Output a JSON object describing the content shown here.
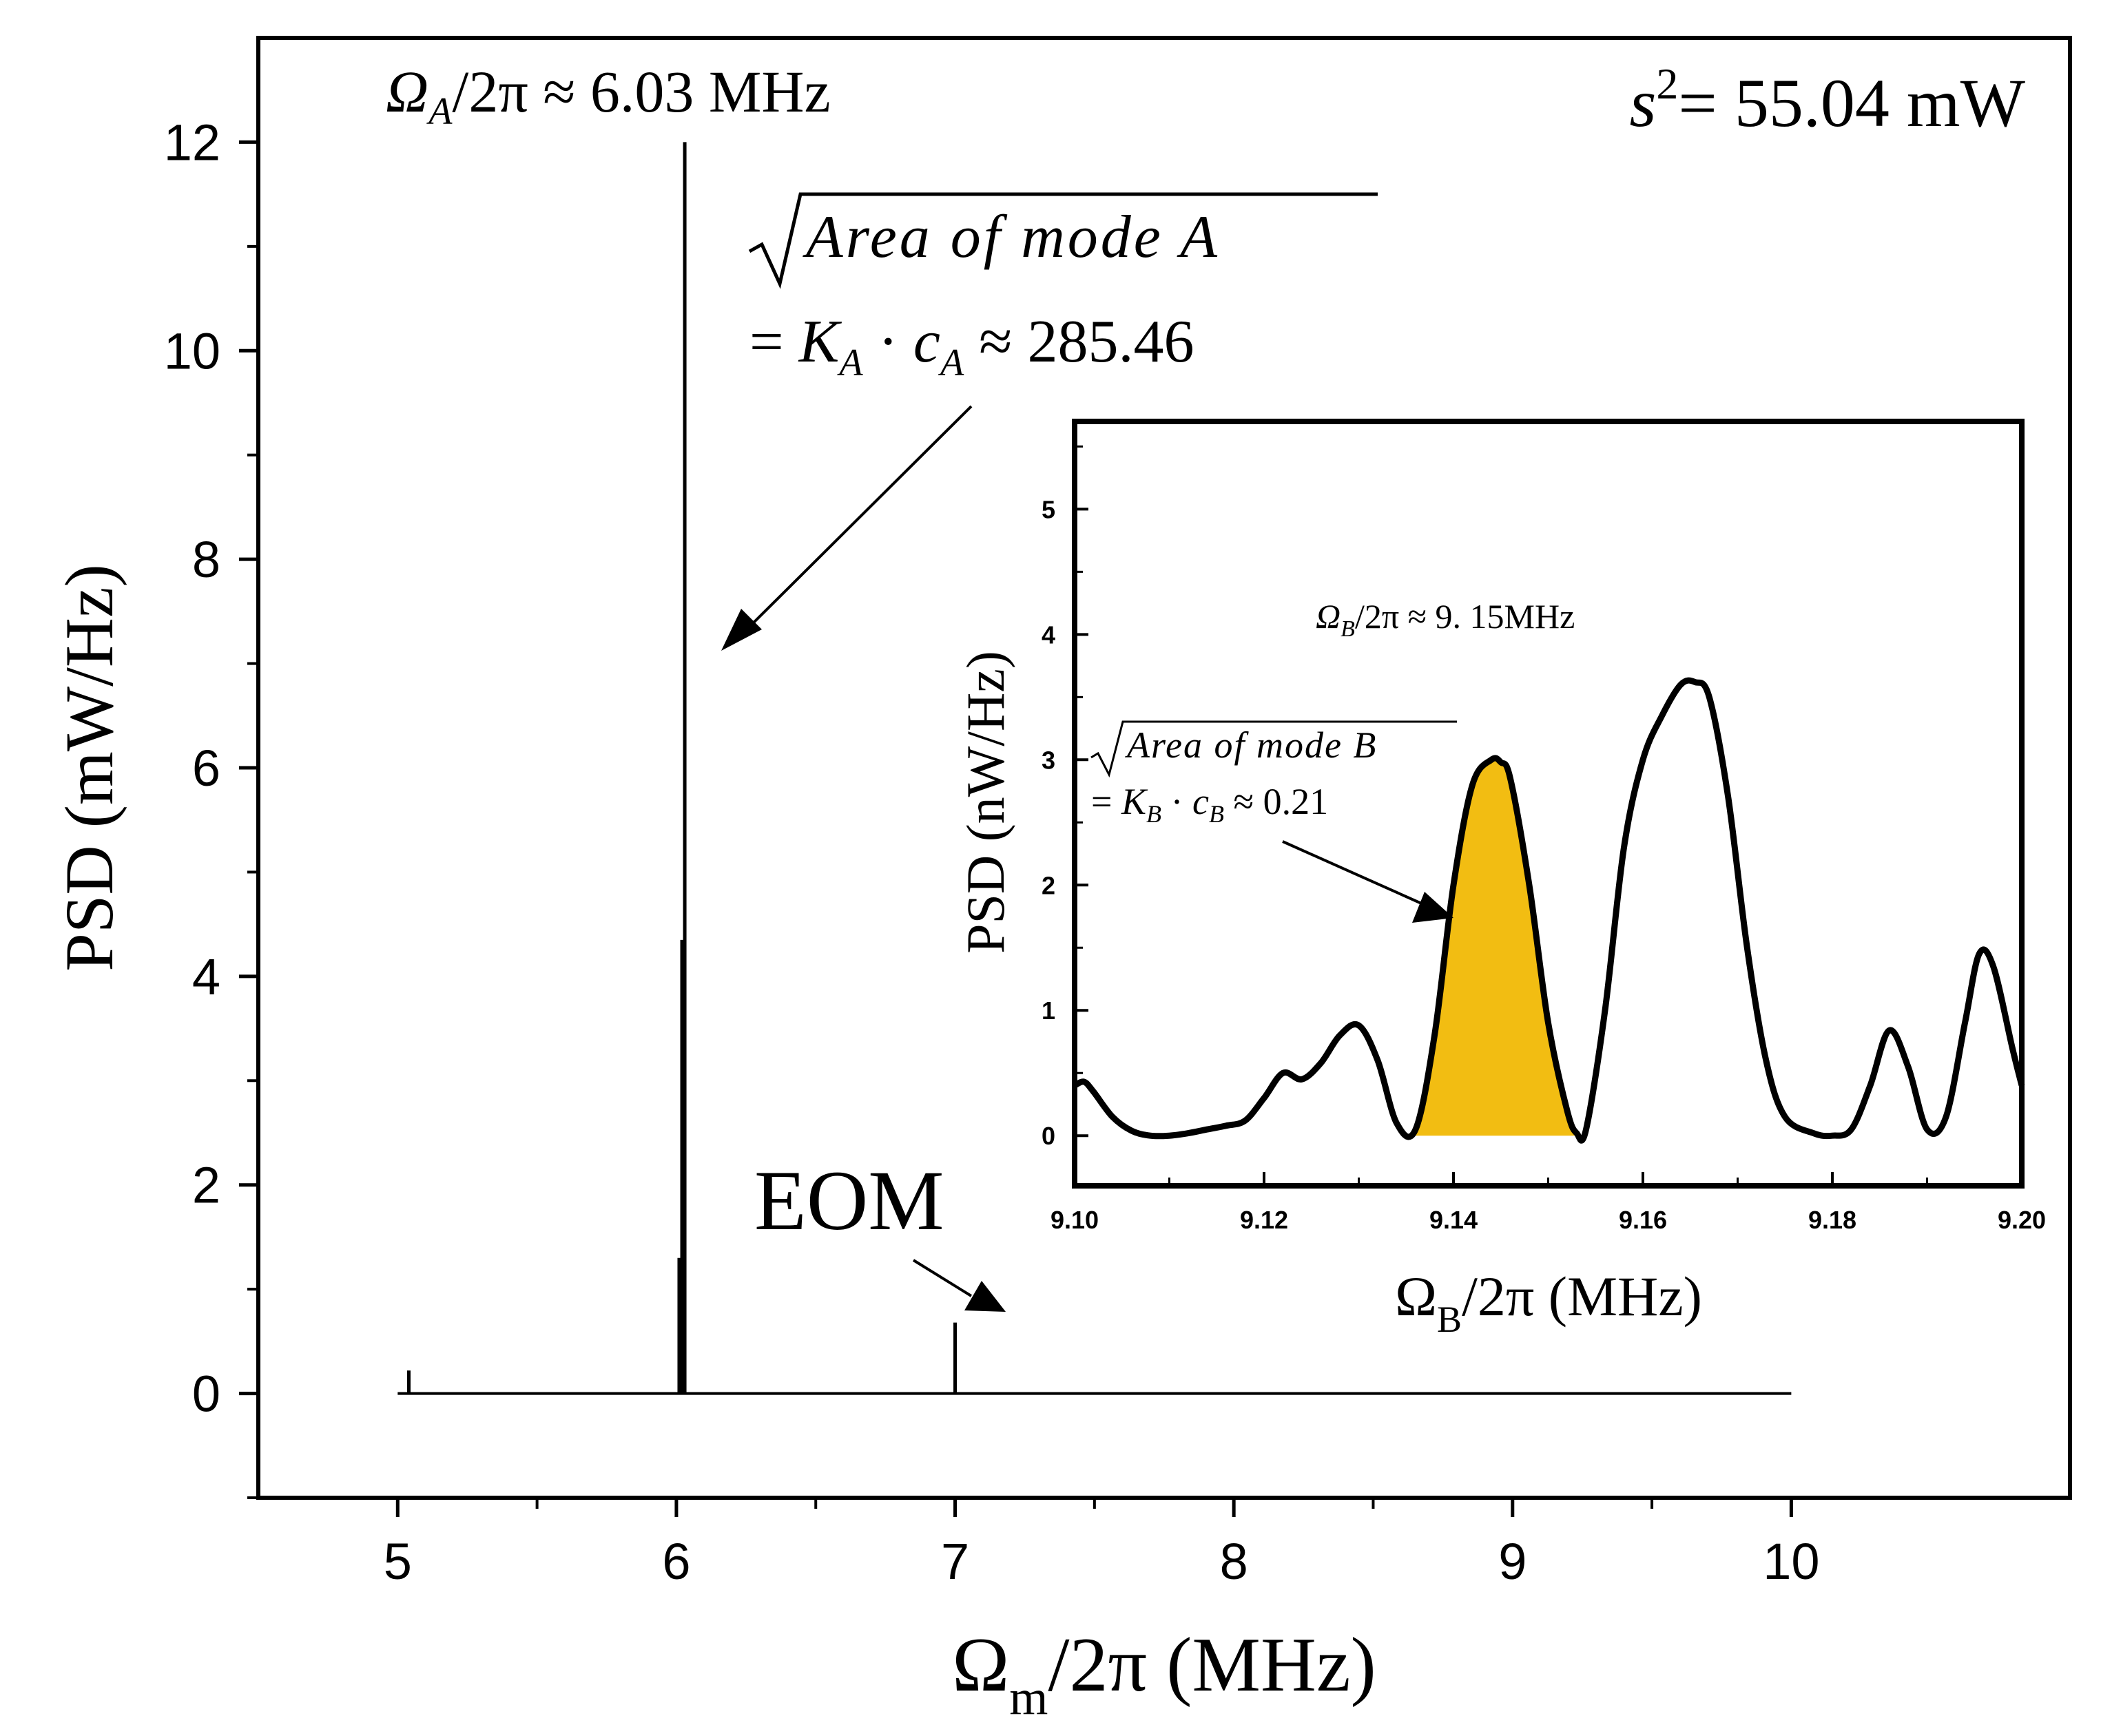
{
  "chart_data": [
    {
      "type": "line",
      "name": "main",
      "xlabel": {
        "symbol": "Ω",
        "sub": "m",
        "rest": "/2π (MHz)"
      },
      "ylabel": "PSD (mW/Hz)",
      "xlim": [
        4.5,
        11.0
      ],
      "ylim": [
        -1.0,
        13.0
      ],
      "xticks": [
        5,
        6,
        7,
        8,
        9,
        10
      ],
      "xtick_labels": [
        "5",
        "6",
        "7",
        "8",
        "9",
        "10"
      ],
      "yticks": [
        0,
        2,
        4,
        6,
        8,
        10,
        12
      ],
      "ytick_labels": [
        "0",
        "2",
        "4",
        "6",
        "8",
        "10",
        "12"
      ],
      "baseline": {
        "x": [
          5.0,
          10.0
        ],
        "y": 0
      },
      "peaks": [
        {
          "x": 5.04,
          "y": 0.22
        },
        {
          "x": 6.01,
          "y": 1.3
        },
        {
          "x": 6.02,
          "y": 4.35
        },
        {
          "x": 6.03,
          "y": 12.0
        },
        {
          "x": 7.0,
          "y": 0.68
        }
      ],
      "annotations": {
        "mode_a_freq": {
          "symbol": "Ω",
          "sub": "A",
          "rest": "/2π ≈ 6.03 MHz"
        },
        "power": {
          "symbol": "s",
          "sup": "2",
          "rest": "= 55.04 mW"
        },
        "area_a_line1": "Area of mode A",
        "area_a_line2": {
          "prefix": "= ",
          "k": "K",
          "k_sub": "A",
          "mid": " · ",
          "c": "c",
          "c_sub": "A",
          "rest": " ≈ 285.46"
        },
        "eom": "EOM"
      }
    },
    {
      "type": "line",
      "name": "inset",
      "xlabel": {
        "symbol": "Ω",
        "sub": "B",
        "rest": "/2π (MHz)"
      },
      "ylabel": "PSD (nW/Hz)",
      "xlim": [
        9.1,
        9.2
      ],
      "ylim": [
        -0.4,
        5.7
      ],
      "xticks": [
        9.1,
        9.12,
        9.14,
        9.16,
        9.18,
        9.2
      ],
      "xtick_labels": [
        "9.10",
        "9.12",
        "9.14",
        "9.16",
        "9.18",
        "9.20"
      ],
      "yticks": [
        0,
        1,
        2,
        3,
        4,
        5
      ],
      "ytick_labels": [
        "0",
        "1",
        "2",
        "3",
        "4",
        "5"
      ],
      "x": [
        9.1,
        9.101,
        9.102,
        9.104,
        9.106,
        9.108,
        9.11,
        9.112,
        9.114,
        9.116,
        9.118,
        9.12,
        9.122,
        9.124,
        9.126,
        9.128,
        9.13,
        9.132,
        9.134,
        9.136,
        9.138,
        9.14,
        9.142,
        9.144,
        9.145,
        9.146,
        9.148,
        9.15,
        9.152,
        9.153,
        9.154,
        9.156,
        9.158,
        9.16,
        9.162,
        9.164,
        9.1655,
        9.167,
        9.169,
        9.171,
        9.173,
        9.175,
        9.178,
        9.18,
        9.182,
        9.184,
        9.186,
        9.188,
        9.19,
        9.192,
        9.194,
        9.1955,
        9.197,
        9.199,
        9.2
      ],
      "y": [
        0.4,
        0.43,
        0.35,
        0.15,
        0.04,
        0.0,
        0.0,
        0.02,
        0.05,
        0.08,
        0.12,
        0.3,
        0.5,
        0.45,
        0.58,
        0.8,
        0.88,
        0.6,
        0.1,
        0.05,
        0.8,
        2.0,
        2.8,
        3.0,
        2.98,
        2.85,
        2.0,
        0.9,
        0.2,
        0.02,
        0.05,
        1.0,
        2.3,
        3.0,
        3.35,
        3.6,
        3.62,
        3.5,
        2.7,
        1.5,
        0.6,
        0.15,
        0.02,
        0.0,
        0.05,
        0.4,
        0.84,
        0.55,
        0.05,
        0.15,
        0.9,
        1.45,
        1.35,
        0.7,
        0.4
      ],
      "shaded_region": {
        "x_start": 9.136,
        "x_end": 9.153,
        "color": "#f2bd12"
      },
      "annotations": {
        "mode_b_freq": {
          "symbol": "Ω",
          "sub": "B",
          "rest": "/2π ≈ 9. 15MHz"
        },
        "area_b_line1": "Area of mode B",
        "area_b_line2": {
          "prefix": "= ",
          "k": "K",
          "k_sub": "B",
          "mid": " · ",
          "c": "c",
          "c_sub": "B",
          "rest": " ≈ 0.21"
        }
      }
    }
  ]
}
